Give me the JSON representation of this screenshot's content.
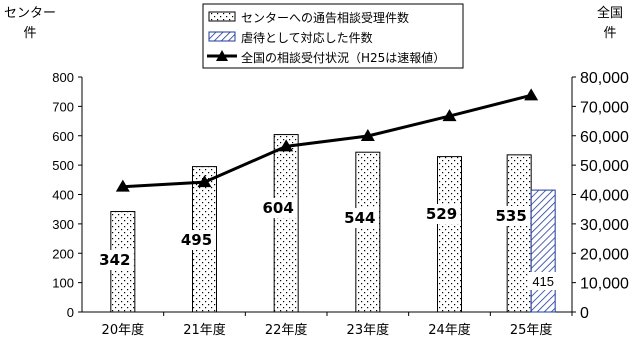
{
  "chart_data": {
    "type": "bar",
    "categories": [
      "20年度",
      "21年度",
      "22年度",
      "23年度",
      "24年度",
      "25年度"
    ],
    "series": [
      {
        "name": "センターへの通告相談受理件数",
        "axis": "left",
        "values": [
          342,
          495,
          604,
          544,
          529,
          535
        ],
        "data_labels": [
          "342",
          "495",
          "604",
          "544",
          "529",
          "535"
        ],
        "fill": "dotted"
      },
      {
        "name": "虐待として対応した件数",
        "axis": "left",
        "values": [
          null,
          null,
          null,
          null,
          null,
          415
        ],
        "data_labels": [
          null,
          null,
          null,
          null,
          null,
          "415"
        ],
        "fill": "hatched-blue"
      },
      {
        "name": "全国の相談受付状況（H25は速報値）",
        "axis": "right",
        "type": "line",
        "values": [
          42664,
          44211,
          56384,
          59919,
          66701,
          73765
        ]
      }
    ],
    "left_axis": {
      "title_lines": [
        "センター",
        "件"
      ],
      "ylim": [
        0,
        800
      ],
      "ticks": [
        "0",
        "100",
        "200",
        "300",
        "400",
        "500",
        "600",
        "700",
        "800"
      ]
    },
    "right_axis": {
      "title_lines": [
        "全国",
        "件"
      ],
      "ylim": [
        0,
        80000
      ],
      "ticks": [
        "0",
        "10,000",
        "20,000",
        "30,000",
        "40,000",
        "50,000",
        "60,000",
        "70,000",
        "80,000"
      ]
    },
    "legend_placement": "top-center",
    "grid": false,
    "colors": {
      "bar_outline": "#000000",
      "hatch": "#1f3a9e",
      "line": "#000000"
    }
  }
}
